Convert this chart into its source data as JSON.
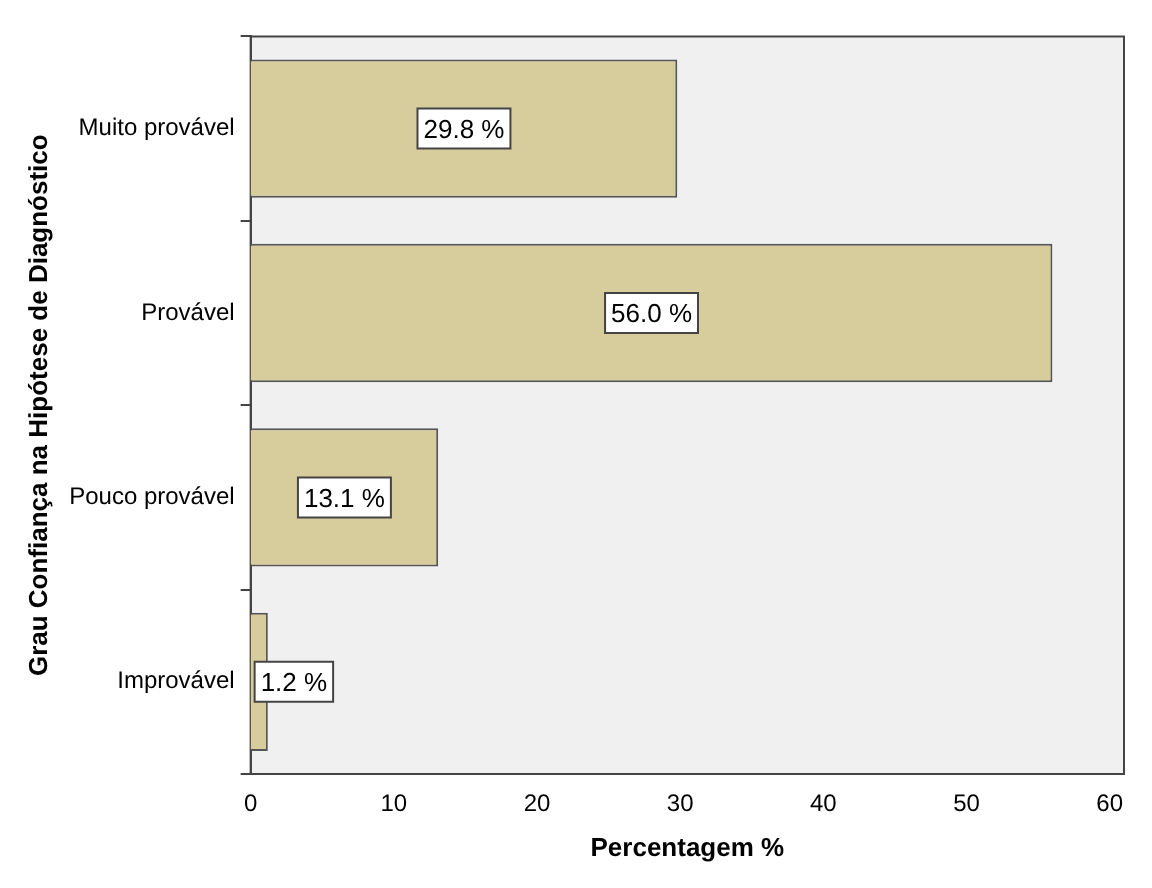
{
  "chart_data": {
    "type": "bar",
    "orientation": "horizontal",
    "xlabel": "Percentagem %",
    "ylabel": "Grau Confiança na Hipótese de Diagnóstico",
    "categories": [
      "Muito provável",
      "Provável",
      "Pouco provável",
      "Improvável"
    ],
    "values": [
      29.8,
      56.0,
      13.1,
      1.2
    ],
    "value_labels": [
      "29.8 %",
      "56.0 %",
      "13.1 %",
      "1.2 %"
    ],
    "color": "#d6cc9c",
    "xlim": [
      0,
      61
    ],
    "xticks": [
      0,
      10,
      20,
      30,
      40,
      50,
      60
    ],
    "grid": false,
    "legend": false
  }
}
